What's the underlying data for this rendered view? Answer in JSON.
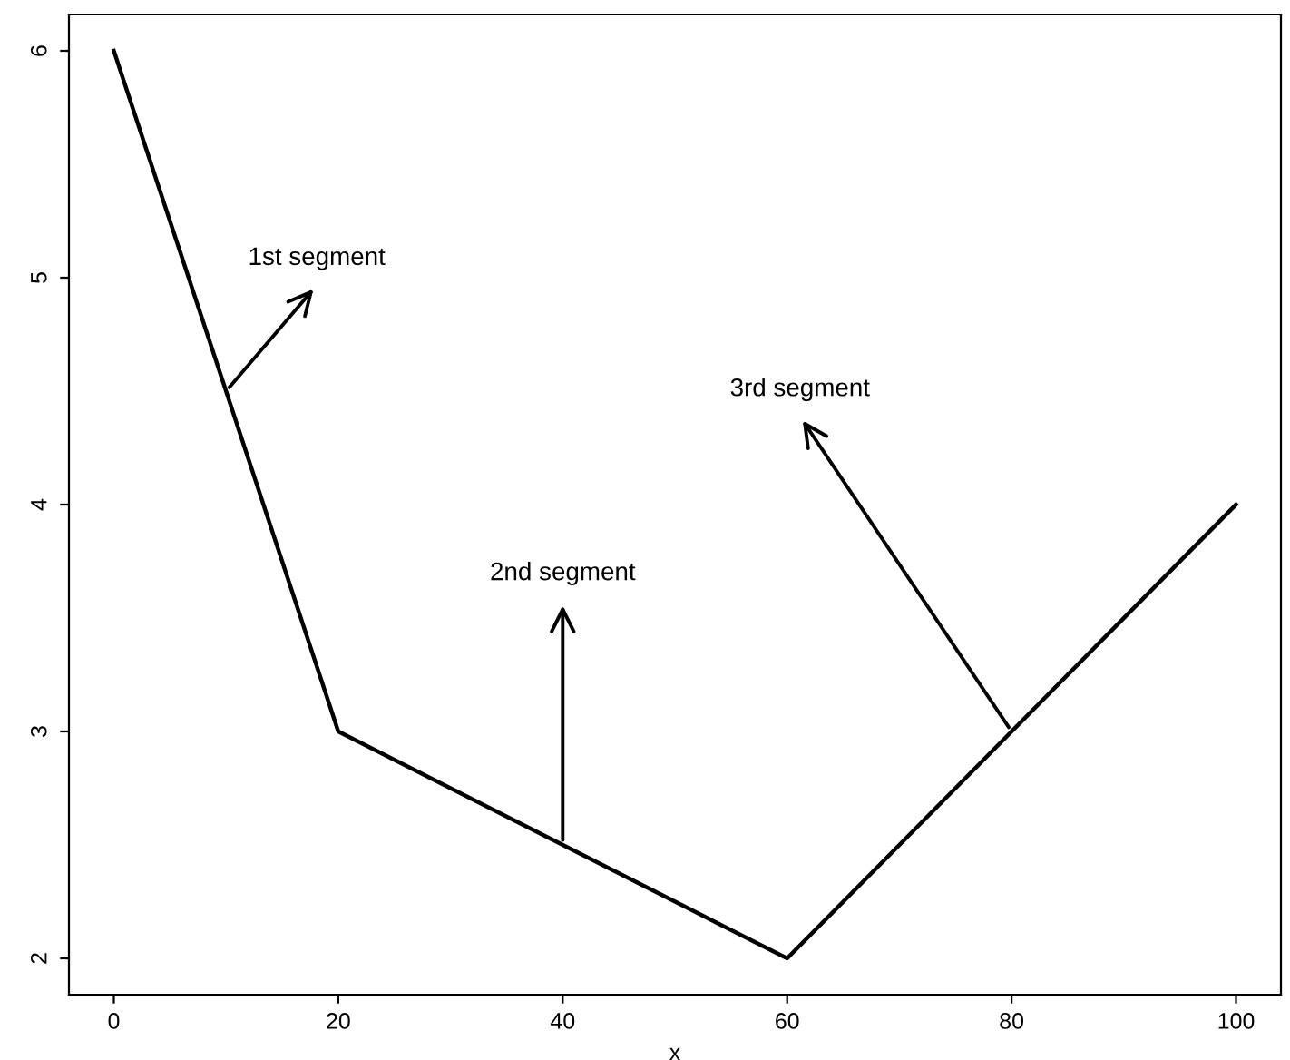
{
  "chart_data": {
    "type": "line",
    "xlabel": "x",
    "x": [
      0,
      20,
      60,
      100
    ],
    "values": [
      6,
      3,
      2,
      4
    ],
    "color": "#000000",
    "xlim": [
      -4,
      104
    ],
    "ylim": [
      1.84,
      6.16
    ],
    "xticks": [
      0,
      20,
      40,
      60,
      80,
      100
    ],
    "yticks": [
      2,
      3,
      4,
      5,
      6
    ],
    "grid": false,
    "legend": false,
    "marker": "none",
    "line_style": "solid",
    "annotations": [
      {
        "text": "1st segment",
        "x": 10,
        "y": 4.5
      },
      {
        "text": "2nd segment",
        "x": 40,
        "y": 2.5
      },
      {
        "text": "3rd segment",
        "x": 80,
        "y": 3
      }
    ]
  }
}
